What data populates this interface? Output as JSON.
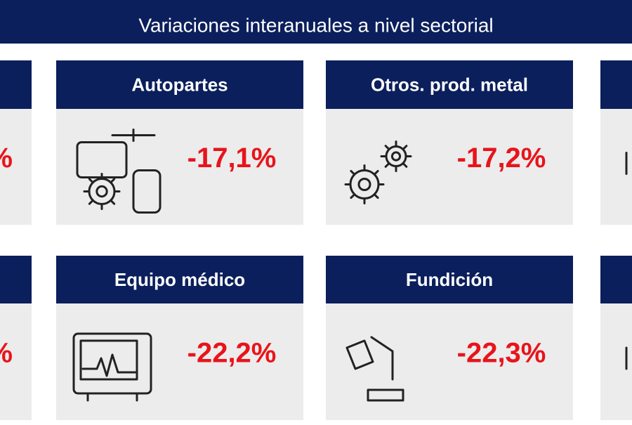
{
  "header": {
    "title": "Variaciones interanuales a nivel sectorial"
  },
  "cards": [
    {
      "title": "Autopartes",
      "value": "-17,1%"
    },
    {
      "title": "Otros. prod. metal",
      "value": "-17,2%"
    },
    {
      "title": "Equipo médico",
      "value": "-22,2%"
    },
    {
      "title": "Fundición",
      "value": "-22,3%"
    }
  ],
  "edge_cards": [
    {
      "value": "%"
    },
    {
      "value": "%"
    }
  ]
}
